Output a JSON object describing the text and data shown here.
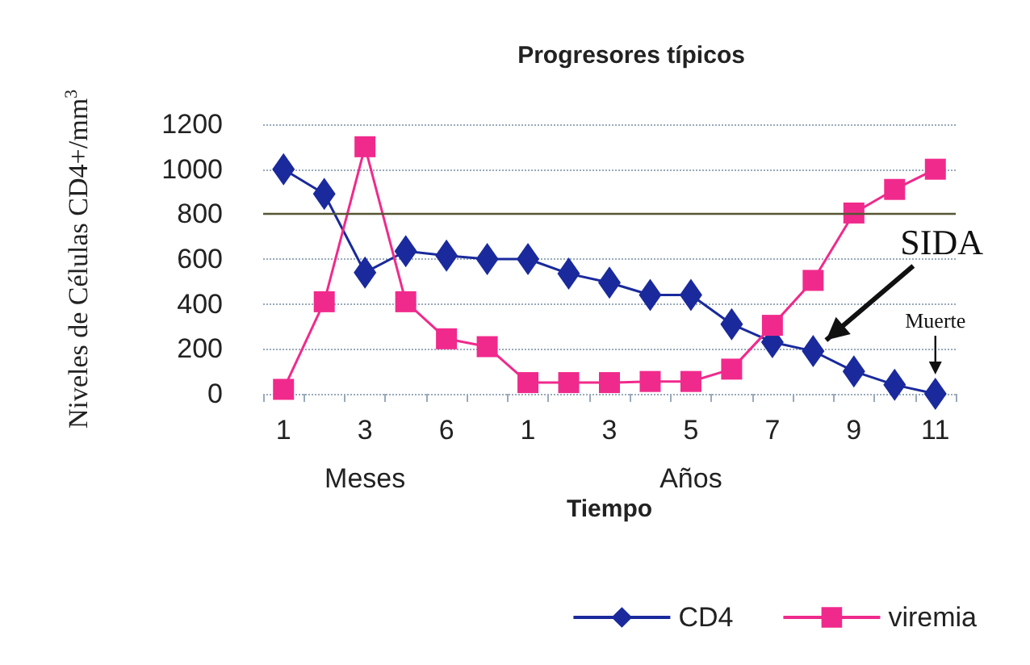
{
  "chart_data": {
    "type": "line",
    "title": "Progresores típicos",
    "xlabel": "Tiempo",
    "ylabel": "Niveles de Células CD4+/mm$^{3}$",
    "categories": [
      "1",
      null,
      "3",
      null,
      "6",
      null,
      "1",
      null,
      "3",
      null,
      "5",
      null,
      "7",
      null,
      "9",
      null,
      "11"
    ],
    "series": [
      {
        "name": "CD4",
        "color": "#1a2a9c",
        "marker": "diamond",
        "values": [
          1000,
          890,
          540,
          635,
          615,
          600,
          600,
          535,
          495,
          440,
          440,
          310,
          230,
          190,
          100,
          40,
          0
        ]
      },
      {
        "name": "viremia",
        "color": "#f02a8c",
        "marker": "square",
        "values": [
          20,
          410,
          1100,
          410,
          245,
          210,
          50,
          50,
          50,
          55,
          55,
          110,
          305,
          505,
          805,
          910,
          1000
        ]
      }
    ],
    "ylim": [
      0,
      1200
    ],
    "yticks": [
      0,
      200,
      400,
      600,
      800,
      1000,
      1200
    ],
    "grid": "y",
    "legend": "bottom right",
    "line_style": "solid",
    "ref_lines": [
      {
        "axis": "y",
        "value": 800,
        "color": "#555533"
      }
    ],
    "annotations": [
      "Meses",
      "Años",
      "SIDA",
      {
        "text": "Muerte",
        "x": "11",
        "y": 0
      }
    ]
  }
}
